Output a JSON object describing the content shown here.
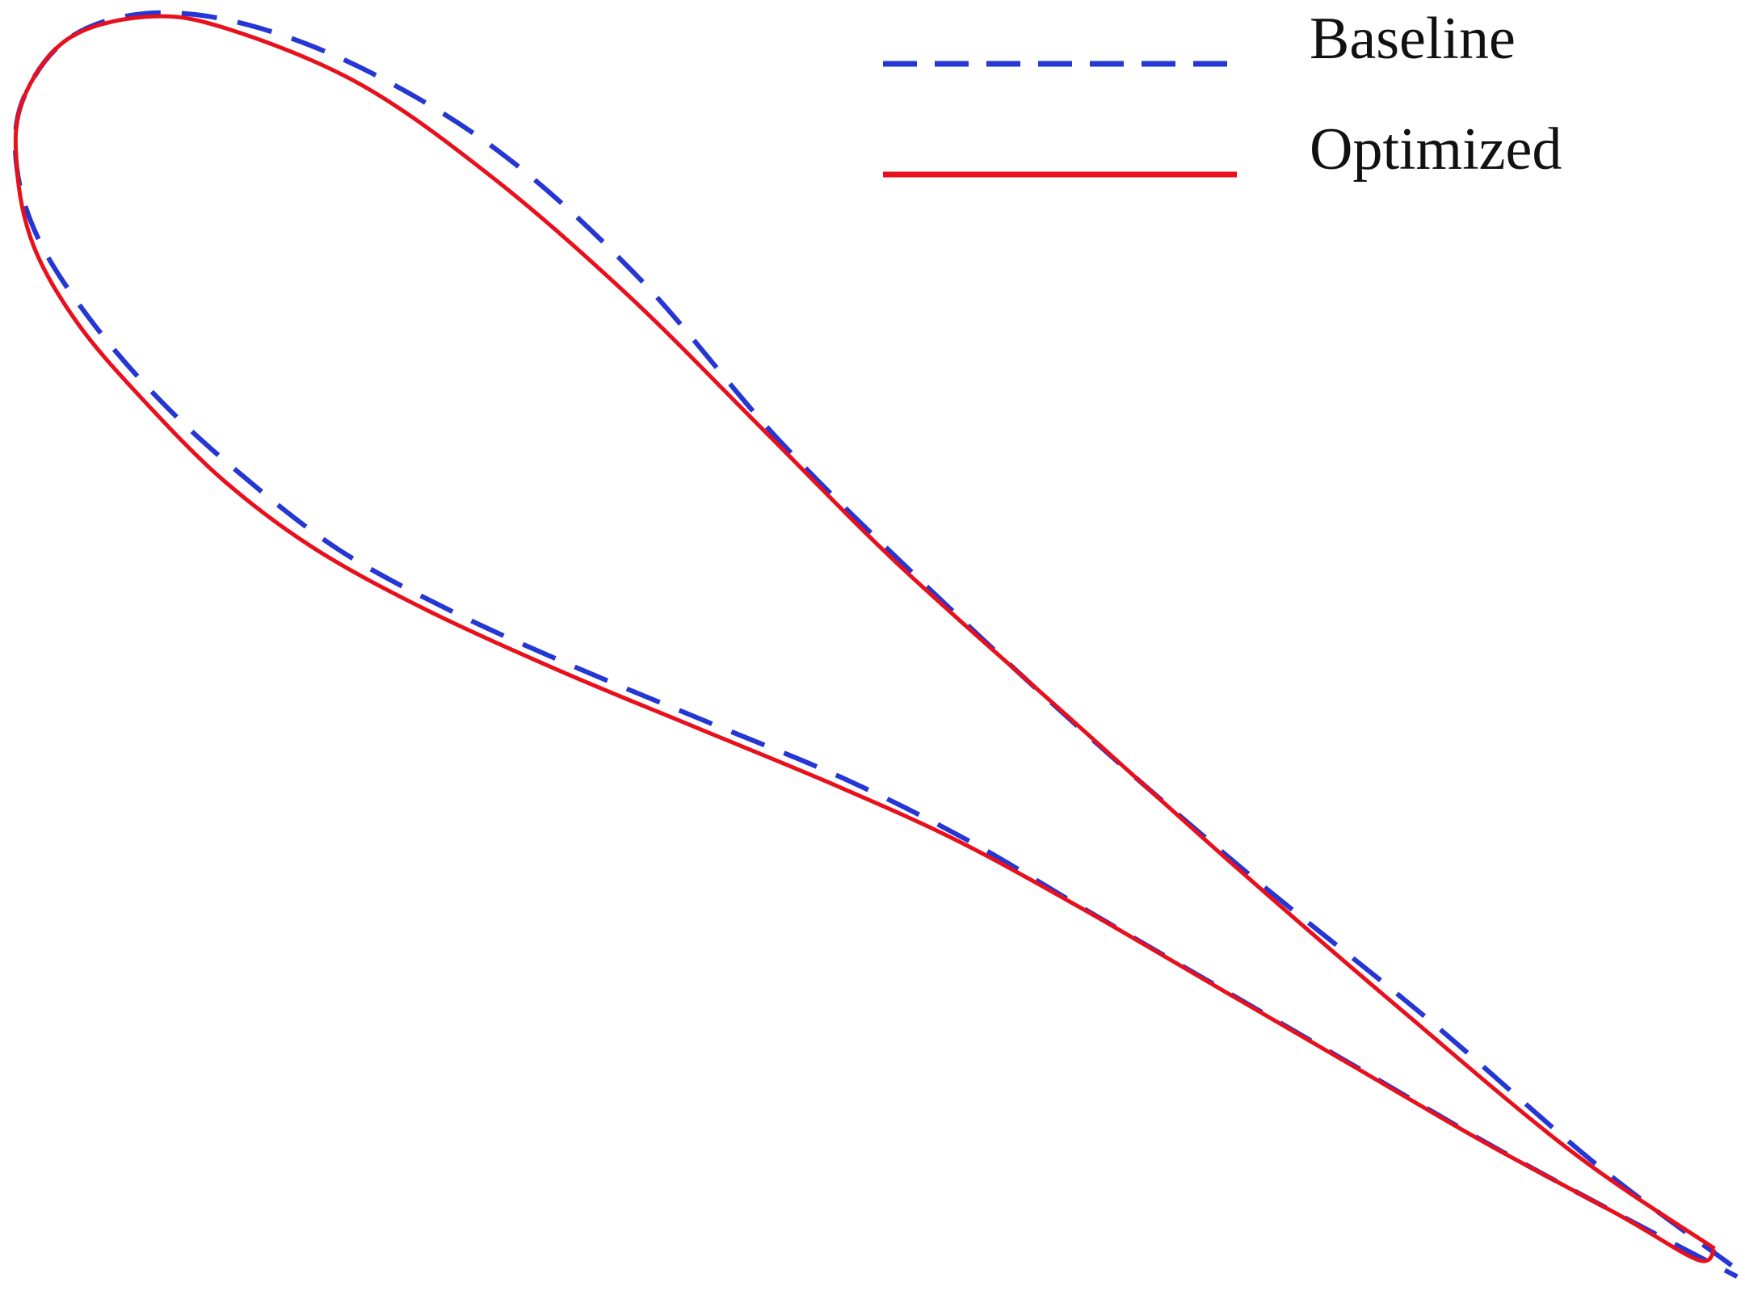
{
  "chart_data": {
    "type": "line",
    "xlim": [
      0,
      155.2
    ],
    "ylim": [
      0,
      116
    ],
    "legend": "upper right",
    "series": [
      {
        "name": "Baseline",
        "color": "#2437d4",
        "dash": true,
        "x": [
          154,
          142,
          127,
          111,
          96,
          81,
          69,
          57,
          45,
          33,
          22,
          13,
          6,
          2,
          1.5,
          3.5,
          8,
          14,
          21,
          30,
          40,
          51,
          63,
          75,
          86,
          97,
          109,
          121,
          133,
          145,
          154.5
        ],
        "values": [
          3,
          12,
          25,
          38,
          51,
          65,
          77,
          91,
          102,
          109.5,
          113.8,
          114.8,
          112.5,
          107,
          101,
          94.5,
          87.5,
          80.5,
          74,
          67,
          61.5,
          56.5,
          51.5,
          46.5,
          41,
          34.5,
          27.5,
          20.5,
          13.5,
          7,
          2
        ]
      },
      {
        "name": "Optimized",
        "color": "#e8101c",
        "dash": false,
        "x": [
          152.5,
          140,
          125,
          110,
          95,
          80,
          68,
          56,
          44,
          32,
          20,
          13,
          6,
          2,
          1.5,
          3,
          7,
          13,
          20,
          28,
          38,
          50,
          62,
          74,
          85,
          96,
          108,
          120,
          132,
          144,
          151,
          152.5
        ],
        "values": [
          4.5,
          13,
          25.5,
          38.5,
          52,
          65.5,
          77.5,
          89.5,
          100,
          108.5,
          113.5,
          114.5,
          112.5,
          107,
          101,
          94,
          87,
          80,
          73,
          67,
          61.5,
          56,
          51,
          46,
          41,
          35,
          28,
          21,
          14,
          7.5,
          3.5,
          4.5
        ]
      }
    ]
  }
}
